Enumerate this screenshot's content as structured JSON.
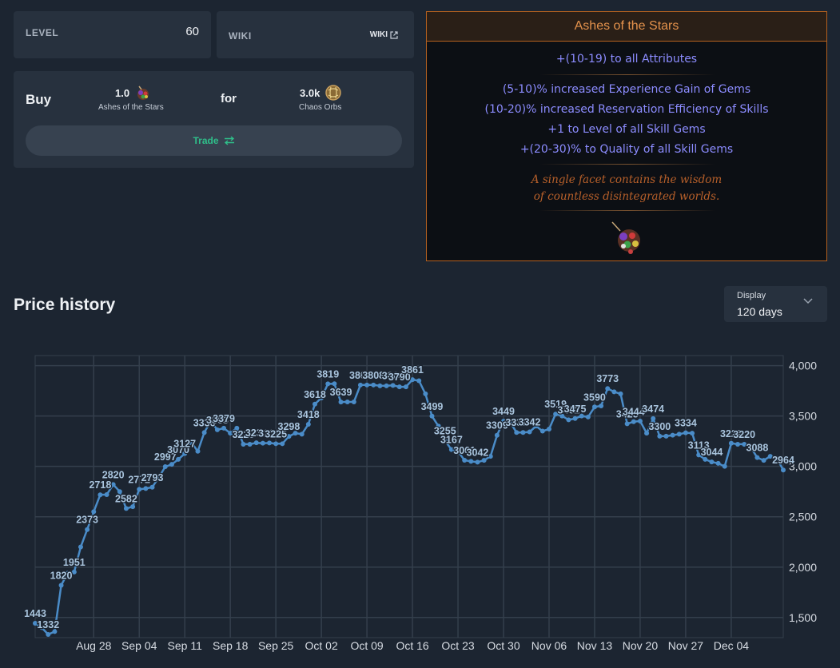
{
  "level": {
    "label": "LEVEL",
    "value": "60"
  },
  "wiki": {
    "label": "WIKI",
    "link": "WIKI"
  },
  "buy": {
    "label": "Buy",
    "item_qty": "1.0",
    "item_name": "Ashes of the Stars",
    "for_label": "for",
    "price_qty": "3.0k",
    "price_name": "Chaos Orbs",
    "trade_label": "Trade"
  },
  "item": {
    "name": "Ashes of the Stars",
    "implicit": "+(10-19) to all Attributes",
    "mods": [
      "(5-10)% increased Experience Gain of Gems",
      "(10-20)% increased Reservation Efficiency of Skills",
      "+1 to Level of all Skill Gems",
      "+(20-30)% to Quality of all Skill Gems"
    ],
    "flavour": [
      "A single facet contains the wisdom",
      "of countless disintegrated worlds."
    ]
  },
  "price_history": {
    "title": "Price history"
  },
  "display": {
    "label": "Display",
    "value": "120 days"
  },
  "colors": {
    "line": "#4a8cc8",
    "label": "#a9c4dd",
    "grid": "#343f4c",
    "accent_unique": "#e4924c",
    "magic": "#8c8cff",
    "trade_green": "#2fbf8a"
  },
  "chart_data": {
    "type": "line",
    "x_tick_labels": [
      "Aug 28",
      "Sep 04",
      "Sep 11",
      "Sep 18",
      "Sep 25",
      "Oct 02",
      "Oct 09",
      "Oct 16",
      "Oct 23",
      "Oct 30",
      "Nov 06",
      "Nov 13",
      "Nov 20",
      "Nov 27",
      "Dec 04"
    ],
    "y_ticks": [
      1500,
      2000,
      2500,
      3000,
      3500,
      4000
    ],
    "y_tick_labels": [
      "1,500",
      "2,000",
      "2,500",
      "3,000",
      "3,500",
      "4,000"
    ],
    "ylim": [
      1300,
      4100
    ],
    "grid": true,
    "series": [
      {
        "values": [
          1443,
          1400,
          1332,
          1360,
          1820,
          1940,
          1951,
          2200,
          2373,
          2550,
          2718,
          2720,
          2820,
          2750,
          2582,
          2600,
          2772,
          2780,
          2793,
          2890,
          2997,
          3020,
          3070,
          3127,
          3240,
          3150,
          3336,
          3450,
          3363,
          3379,
          3330,
          3379,
          3220,
          3220,
          3234,
          3230,
          3232,
          3225,
          3225,
          3298,
          3330,
          3320,
          3418,
          3618,
          3680,
          3819,
          3820,
          3639,
          3640,
          3640,
          3808,
          3808,
          3808,
          3800,
          3800,
          3804,
          3790,
          3790,
          3861,
          3850,
          3720,
          3499,
          3400,
          3255,
          3167,
          3150,
          3061,
          3050,
          3042,
          3060,
          3100,
          3309,
          3449,
          3440,
          3337,
          3337,
          3342,
          3400,
          3350,
          3370,
          3519,
          3500,
          3462,
          3475,
          3500,
          3490,
          3590,
          3600,
          3773,
          3740,
          3720,
          3423,
          3444,
          3450,
          3330,
          3474,
          3300,
          3300,
          3310,
          3320,
          3334,
          3330,
          3113,
          3070,
          3044,
          3030,
          3000,
          3229,
          3220,
          3220,
          3190,
          3088,
          3060,
          3100,
          3080,
          2964
        ],
        "labels": [
          {
            "i": 0,
            "text": "1443"
          },
          {
            "i": 2,
            "text": "1332"
          },
          {
            "i": 4,
            "text": "1820"
          },
          {
            "i": 6,
            "text": "1951"
          },
          {
            "i": 8,
            "text": "2373"
          },
          {
            "i": 10,
            "text": "2718"
          },
          {
            "i": 12,
            "text": "2820"
          },
          {
            "i": 14,
            "text": "2582"
          },
          {
            "i": 16,
            "text": "2772"
          },
          {
            "i": 18,
            "text": "2793"
          },
          {
            "i": 20,
            "text": "2997"
          },
          {
            "i": 22,
            "text": "3070"
          },
          {
            "i": 23,
            "text": "3127"
          },
          {
            "i": 26,
            "text": "3336"
          },
          {
            "i": 28,
            "text": "3363"
          },
          {
            "i": 29,
            "text": "3379"
          },
          {
            "i": 32,
            "text": "3220"
          },
          {
            "i": 34,
            "text": "3234"
          },
          {
            "i": 36,
            "text": "3232"
          },
          {
            "i": 37,
            "text": "3225"
          },
          {
            "i": 39,
            "text": "3298"
          },
          {
            "i": 42,
            "text": "3418"
          },
          {
            "i": 43,
            "text": "3618"
          },
          {
            "i": 45,
            "text": "3819"
          },
          {
            "i": 47,
            "text": "3639"
          },
          {
            "i": 50,
            "text": "3808"
          },
          {
            "i": 52,
            "text": "3808"
          },
          {
            "i": 55,
            "text": "3804"
          },
          {
            "i": 56,
            "text": "3790"
          },
          {
            "i": 58,
            "text": "3861"
          },
          {
            "i": 61,
            "text": "3499"
          },
          {
            "i": 63,
            "text": "3255"
          },
          {
            "i": 64,
            "text": "3167"
          },
          {
            "i": 66,
            "text": "3061"
          },
          {
            "i": 68,
            "text": "3042"
          },
          {
            "i": 71,
            "text": "3309"
          },
          {
            "i": 72,
            "text": "3449"
          },
          {
            "i": 74,
            "text": "3337"
          },
          {
            "i": 76,
            "text": "3342"
          },
          {
            "i": 80,
            "text": "3519"
          },
          {
            "i": 82,
            "text": "3462"
          },
          {
            "i": 83,
            "text": "3475"
          },
          {
            "i": 86,
            "text": "3590"
          },
          {
            "i": 88,
            "text": "3773"
          },
          {
            "i": 91,
            "text": "3423"
          },
          {
            "i": 92,
            "text": "3444"
          },
          {
            "i": 95,
            "text": "3474"
          },
          {
            "i": 96,
            "text": "3300"
          },
          {
            "i": 100,
            "text": "3334"
          },
          {
            "i": 102,
            "text": "3113"
          },
          {
            "i": 104,
            "text": "3044"
          },
          {
            "i": 107,
            "text": "3229"
          },
          {
            "i": 109,
            "text": "3220"
          },
          {
            "i": 111,
            "text": "3088"
          },
          {
            "i": 115,
            "text": "2964"
          }
        ]
      }
    ]
  }
}
